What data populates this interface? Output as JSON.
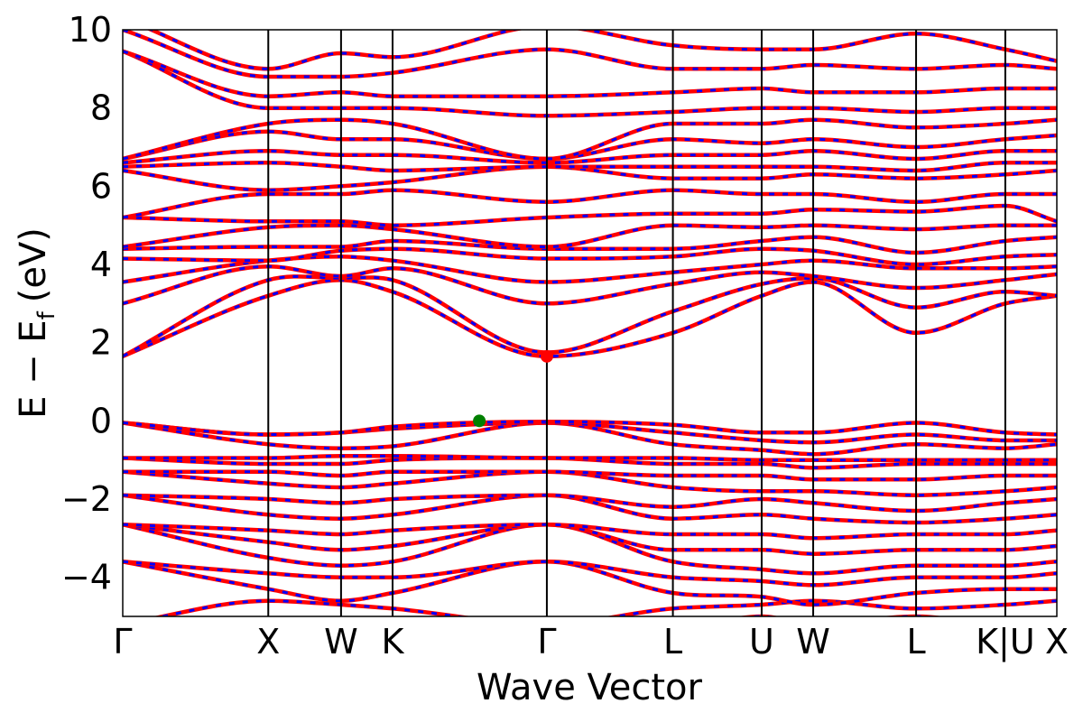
{
  "chart_data": {
    "type": "line",
    "xlabel": "Wave Vector",
    "ylabel": "E − E",
    "ylabel_sub": "f",
    "ylabel_unit": "(eV)",
    "ylim": [
      -5,
      10
    ],
    "yticks": [
      -4,
      -2,
      0,
      2,
      4,
      6,
      8,
      10
    ],
    "ytick_labels": [
      "−4",
      "−2",
      "0",
      "2",
      "4",
      "6",
      "8",
      "10"
    ],
    "kpoints": [
      {
        "label": "Γ",
        "x": 0.0
      },
      {
        "label": "X",
        "x": 1.0
      },
      {
        "label": "W",
        "x": 1.5
      },
      {
        "label": "K",
        "x": 1.854
      },
      {
        "label": "Γ",
        "x": 2.914
      },
      {
        "label": "L",
        "x": 3.78
      },
      {
        "label": "U",
        "x": 4.39
      },
      {
        "label": "W",
        "x": 4.744
      },
      {
        "label": "L",
        "x": 5.451
      },
      {
        "label": "K|U",
        "x": 6.064
      },
      {
        "label": "X",
        "x": 6.418
      }
    ],
    "xlim": [
      0,
      6.418
    ],
    "series_colors": {
      "spin_up": "#ff0000",
      "spin_down": "#0000ff"
    },
    "markers": [
      {
        "type": "VBM",
        "x": 2.45,
        "y": 0.0,
        "color": "#008000"
      },
      {
        "type": "CBM",
        "x": 2.914,
        "y": 1.65,
        "color": "#ff0000"
      }
    ],
    "bands": [
      [
        -5.6,
        -5.3,
        -5.2,
        -5.3,
        -5.8,
        -5.4,
        -5.0,
        -5.2,
        -5.0,
        -5.3,
        -5.4
      ],
      [
        -5.2,
        -4.6,
        -4.7,
        -4.8,
        -5.2,
        -4.8,
        -4.7,
        -4.6,
        -4.8,
        -4.7,
        -4.6
      ],
      [
        -3.6,
        -4.3,
        -4.6,
        -4.4,
        -3.6,
        -4.4,
        -4.5,
        -4.7,
        -4.4,
        -4.3,
        -4.3
      ],
      [
        -3.6,
        -3.9,
        -4.0,
        -4.0,
        -3.6,
        -4.0,
        -4.1,
        -4.2,
        -4.0,
        -4.0,
        -3.9
      ],
      [
        -2.65,
        -3.5,
        -3.7,
        -3.6,
        -2.65,
        -3.6,
        -3.8,
        -3.9,
        -3.7,
        -3.7,
        -3.6
      ],
      [
        -2.65,
        -3.1,
        -3.3,
        -3.2,
        -2.65,
        -3.3,
        -3.3,
        -3.4,
        -3.3,
        -3.3,
        -3.2
      ],
      [
        -2.65,
        -2.8,
        -2.9,
        -2.8,
        -2.65,
        -2.9,
        -2.9,
        -3.0,
        -2.9,
        -2.9,
        -2.8
      ],
      [
        -1.9,
        -2.4,
        -2.5,
        -2.4,
        -1.9,
        -2.5,
        -2.4,
        -2.5,
        -2.6,
        -2.5,
        -2.4
      ],
      [
        -1.9,
        -2.0,
        -2.1,
        -2.0,
        -1.9,
        -2.2,
        -2.0,
        -2.1,
        -2.3,
        -2.1,
        -2.0
      ],
      [
        -1.3,
        -1.6,
        -1.7,
        -1.6,
        -1.3,
        -1.7,
        -1.8,
        -1.8,
        -1.9,
        -1.8,
        -1.7
      ],
      [
        -1.3,
        -1.3,
        -1.4,
        -1.3,
        -1.3,
        -1.4,
        -1.4,
        -1.5,
        -1.5,
        -1.4,
        -1.4
      ],
      [
        -0.95,
        -1.1,
        -1.1,
        -1.0,
        -0.95,
        -1.1,
        -1.1,
        -1.2,
        -1.1,
        -1.1,
        -1.1
      ],
      [
        -0.95,
        -0.95,
        -0.9,
        -0.9,
        -0.95,
        -0.95,
        -1.0,
        -1.0,
        -1.0,
        -1.0,
        -1.0
      ],
      [
        -0.05,
        -0.6,
        -0.7,
        -0.65,
        -0.05,
        -0.6,
        -0.75,
        -0.85,
        -0.6,
        -0.7,
        -0.6
      ],
      [
        -0.05,
        -0.35,
        -0.3,
        -0.2,
        -0.05,
        -0.3,
        -0.5,
        -0.55,
        -0.35,
        -0.5,
        -0.5
      ],
      [
        -0.05,
        -0.35,
        -0.3,
        -0.15,
        -0.02,
        -0.1,
        -0.3,
        -0.3,
        -0.05,
        -0.3,
        -0.35
      ],
      [
        1.65,
        3.2,
        3.6,
        3.3,
        1.65,
        2.25,
        3.2,
        3.55,
        2.25,
        3.0,
        3.2
      ],
      [
        1.65,
        3.6,
        3.65,
        3.6,
        1.75,
        2.8,
        3.5,
        3.65,
        2.9,
        3.3,
        3.2
      ],
      [
        3.0,
        3.95,
        3.7,
        3.9,
        3.0,
        3.5,
        3.8,
        3.7,
        3.4,
        3.6,
        3.75
      ],
      [
        3.55,
        4.1,
        4.2,
        4.1,
        3.55,
        3.8,
        4.0,
        4.1,
        3.9,
        3.9,
        3.95
      ],
      [
        4.15,
        4.1,
        4.35,
        4.4,
        4.15,
        4.2,
        4.4,
        4.35,
        4.0,
        4.2,
        4.25
      ],
      [
        4.4,
        4.45,
        4.45,
        4.6,
        4.4,
        4.4,
        4.6,
        4.7,
        4.3,
        4.6,
        4.7
      ],
      [
        4.45,
        4.95,
        5.0,
        4.9,
        4.45,
        5.0,
        4.95,
        5.0,
        4.9,
        5.0,
        5.0
      ],
      [
        5.2,
        5.1,
        5.1,
        5.0,
        5.2,
        5.3,
        5.3,
        5.4,
        5.35,
        5.5,
        5.1
      ],
      [
        5.2,
        5.8,
        5.8,
        5.9,
        5.6,
        5.9,
        5.8,
        5.8,
        5.6,
        5.8,
        5.8
      ],
      [
        6.4,
        5.9,
        6.0,
        6.1,
        6.5,
        6.2,
        6.2,
        6.3,
        6.2,
        6.3,
        6.4
      ],
      [
        6.5,
        6.6,
        6.5,
        6.4,
        6.5,
        6.5,
        6.5,
        6.5,
        6.4,
        6.6,
        6.6
      ],
      [
        6.6,
        6.9,
        6.8,
        6.8,
        6.6,
        6.8,
        6.8,
        6.9,
        6.7,
        6.9,
        6.9
      ],
      [
        6.7,
        7.4,
        7.2,
        7.2,
        6.7,
        7.2,
        7.1,
        7.2,
        7.0,
        7.2,
        7.3
      ],
      [
        6.7,
        7.6,
        7.7,
        7.6,
        6.7,
        7.6,
        7.6,
        7.7,
        7.5,
        7.6,
        7.7
      ],
      [
        9.45,
        8.0,
        8.0,
        8.0,
        7.8,
        7.9,
        8.0,
        8.0,
        7.9,
        8.0,
        8.0
      ],
      [
        9.45,
        8.3,
        8.4,
        8.3,
        8.3,
        8.4,
        8.5,
        8.4,
        8.4,
        8.5,
        8.5
      ],
      [
        10.0,
        8.8,
        8.8,
        8.9,
        9.5,
        9.0,
        9.0,
        9.1,
        9.0,
        9.1,
        9.0
      ],
      [
        10.3,
        9.0,
        9.4,
        9.3,
        10.1,
        9.6,
        9.5,
        9.5,
        9.9,
        9.5,
        9.2
      ]
    ]
  }
}
